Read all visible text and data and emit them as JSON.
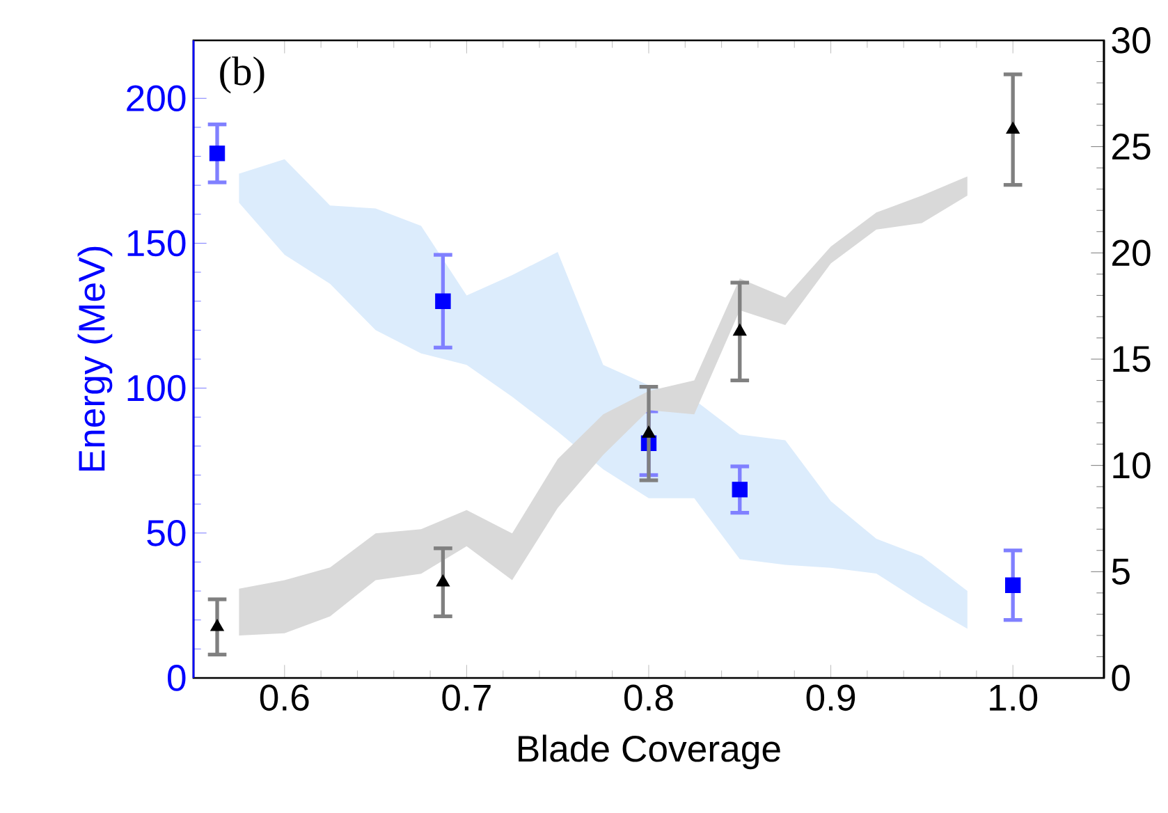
{
  "chart_data": {
    "type": "scatter",
    "xlabel": "Blade Coverage",
    "ylabel": "Energy (MeV)",
    "annotations": [
      "(b)"
    ],
    "xlim": [
      0.55,
      1.05
    ],
    "xticks": [
      {
        "value": 0.6,
        "label": "0.6"
      },
      {
        "value": 0.7,
        "label": "0.7"
      },
      {
        "value": 0.8,
        "label": "0.8"
      },
      {
        "value": 0.9,
        "label": "0.9"
      },
      {
        "value": 1,
        "label": "1.0"
      }
    ],
    "ylim": [
      0,
      220
    ],
    "yticks": [
      0,
      50,
      100,
      150,
      200
    ],
    "y2lim": [
      0,
      30
    ],
    "y2ticks": [
      0,
      5,
      10,
      15,
      20,
      25,
      30
    ],
    "series": [
      {
        "type": "area",
        "color": "#dcecfc",
        "values": [
          null,
          null,
          null,
          null,
          null,
          null,
          null,
          null,
          null,
          null,
          null,
          null,
          null,
          null,
          null,
          null,
          null
        ],
        "x": [
          0.575,
          0.6,
          0.625,
          0.65,
          0.675,
          0.7,
          0.725,
          0.75,
          0.775,
          0.8,
          0.825,
          0.85,
          0.875,
          0.9,
          0.925,
          0.95,
          0.975
        ],
        "lower": [
          164,
          146,
          136,
          120,
          112,
          108,
          97,
          85,
          72,
          62,
          62,
          41,
          39,
          38,
          36,
          26,
          17
        ],
        "upper": [
          174,
          179,
          163,
          162,
          156,
          132,
          139,
          147,
          108,
          101,
          96,
          84,
          82,
          61,
          48,
          42,
          30
        ]
      },
      {
        "type": "area",
        "axis": "y2",
        "color": "#d9d9d9",
        "values": [
          null,
          null,
          null,
          null,
          null,
          null,
          null,
          null,
          null,
          null,
          null,
          null,
          null,
          null,
          null,
          null,
          null
        ],
        "x": [
          0.575,
          0.6,
          0.625,
          0.65,
          0.675,
          0.7,
          0.725,
          0.75,
          0.775,
          0.8,
          0.825,
          0.85,
          0.875,
          0.9,
          0.925,
          0.95,
          0.975
        ],
        "lower": [
          2.0,
          2.1,
          2.9,
          4.6,
          4.9,
          6.2,
          4.6,
          8.0,
          10.5,
          12.6,
          12.4,
          17.3,
          16.6,
          19.5,
          21.1,
          21.4,
          22.7
        ],
        "upper": [
          4.2,
          4.6,
          5.2,
          6.8,
          7.0,
          7.9,
          6.8,
          10.3,
          12.4,
          13.5,
          14.0,
          18.8,
          17.9,
          20.3,
          21.9,
          22.7,
          23.6
        ]
      },
      {
        "marker": "square",
        "color": "#0000ff",
        "x": [
          0.563,
          0.687,
          0.8,
          0.85,
          1.0
        ],
        "values": [
          181,
          130,
          81,
          65,
          32
        ],
        "errors": [
          10,
          16,
          11,
          8,
          12
        ]
      },
      {
        "marker": "triangle",
        "axis": "y2",
        "color": "#000000",
        "x": [
          0.563,
          0.687,
          0.8,
          0.85,
          1.0
        ],
        "values": [
          2.4,
          4.5,
          11.5,
          16.3,
          25.8
        ],
        "errors": [
          1.3,
          1.6,
          2.2,
          2.3,
          2.6
        ]
      }
    ]
  }
}
